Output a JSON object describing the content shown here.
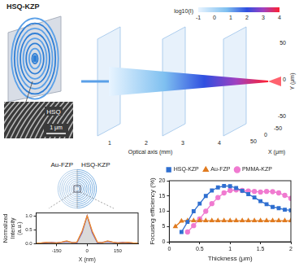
{
  "chart_data": [
    {
      "type": "line",
      "x_label": "Thickness (μm)",
      "y_label": "Focusing efficiency (%)",
      "xlim": [
        0,
        2
      ],
      "xticks": [
        0,
        0.5,
        1,
        1.5,
        2
      ],
      "ylim": [
        0,
        20
      ],
      "yticks": [
        0,
        5,
        10,
        15,
        20
      ],
      "grid": false,
      "legend": "top",
      "series": [
        {
          "name": "HSQ-KZP",
          "color": "#2f6fd0",
          "marker": "square",
          "x": [
            0.2,
            0.3,
            0.4,
            0.5,
            0.6,
            0.7,
            0.8,
            0.9,
            1.0,
            1.1,
            1.2,
            1.3,
            1.4,
            1.5,
            1.6,
            1.7,
            1.8,
            1.9,
            2.0
          ],
          "values": [
            3.2,
            6.5,
            10,
            12.5,
            15,
            16.8,
            17.8,
            18.3,
            18.2,
            17.6,
            16.7,
            15.6,
            14.5,
            13.3,
            12.3,
            11.4,
            11,
            10.5,
            10.3
          ]
        },
        {
          "name": "Au-FZP",
          "color": "#e07b20",
          "marker": "triangle",
          "x": [
            0.1,
            0.2,
            0.3,
            0.4,
            0.5,
            0.6,
            0.7,
            0.8,
            0.9,
            1.0,
            1.1,
            1.2,
            1.3,
            1.4,
            1.5,
            1.6,
            1.7,
            1.8,
            1.9,
            2.0
          ],
          "values": [
            5,
            6.8,
            6.9,
            6.9,
            6.9,
            6.9,
            6.9,
            6.9,
            6.9,
            6.9,
            6.9,
            6.9,
            6.9,
            6.9,
            6.9,
            6.9,
            6.9,
            6.9,
            6.9,
            6.9
          ]
        },
        {
          "name": "PMMA-KZP",
          "color": "#f07ad0",
          "marker": "circle",
          "x": [
            0.3,
            0.4,
            0.5,
            0.6,
            0.7,
            0.8,
            0.9,
            1.0,
            1.1,
            1.2,
            1.3,
            1.4,
            1.5,
            1.6,
            1.7,
            1.8,
            1.9,
            2.0
          ],
          "values": [
            3.2,
            5.3,
            7.5,
            10,
            12.5,
            14.5,
            16,
            16.8,
            17,
            16.8,
            16.6,
            16.5,
            16.3,
            16.5,
            16.4,
            16,
            15.2,
            14.2
          ]
        }
      ]
    },
    {
      "type": "line",
      "x_label": "X (nm)",
      "y_label": "Normalized Intensity (a.u.)",
      "xlim": [
        -250,
        250
      ],
      "xticks": [
        -150,
        0,
        150
      ],
      "ylim": [
        0,
        1.1
      ],
      "yticks": [
        {
          "value": 0,
          "label": "0.0"
        },
        0.5,
        {
          "value": 1,
          "label": "1.0"
        }
      ],
      "grid": false,
      "series": [
        {
          "color": "#f28c28",
          "x": [
            -250,
            -225,
            -200,
            -175,
            -150,
            -125,
            -100,
            -75,
            -50,
            -25,
            0,
            25,
            50,
            75,
            100,
            125,
            150,
            175,
            200,
            225,
            250
          ],
          "values": [
            0.02,
            0.03,
            0.05,
            0.04,
            0.03,
            0.06,
            0.1,
            0.04,
            0.06,
            0.45,
            1.0,
            0.45,
            0.06,
            0.04,
            0.1,
            0.06,
            0.03,
            0.04,
            0.05,
            0.03,
            0.02
          ]
        },
        {
          "color": "#6a4fc8",
          "x": [
            -250,
            -225,
            -200,
            -175,
            -150,
            -125,
            -100,
            -75,
            -50,
            -25,
            0,
            25,
            50,
            75,
            100,
            125,
            150,
            175,
            200,
            225,
            250
          ],
          "values": [
            0.02,
            0.02,
            0.04,
            0.05,
            0.03,
            0.05,
            0.08,
            0.05,
            0.04,
            0.4,
            1.0,
            0.4,
            0.04,
            0.05,
            0.08,
            0.05,
            0.03,
            0.05,
            0.04,
            0.02,
            0.02
          ]
        }
      ]
    }
  ],
  "illustrations": {
    "zone_plate": {
      "title": "HSQ-KZP"
    },
    "sem_inset": {
      "material": "HSQ",
      "scale_bar": "1 μm"
    },
    "beam_plot": {
      "x_label": "Optical axis (mm)",
      "xticks": [
        1,
        2,
        3,
        4
      ],
      "y_label": "Y (μm)",
      "yticks": [
        50,
        0,
        -50
      ],
      "z_label": "X (μm)",
      "zticks": [
        50,
        0,
        -50
      ],
      "colorbar": {
        "label": "log10(I)",
        "range": [
          -1,
          4
        ],
        "ticks": [
          -1,
          0,
          1,
          2,
          3,
          4
        ]
      }
    },
    "ring_image": {
      "left": "Au-FZP",
      "right": "HSQ-KZP"
    }
  }
}
